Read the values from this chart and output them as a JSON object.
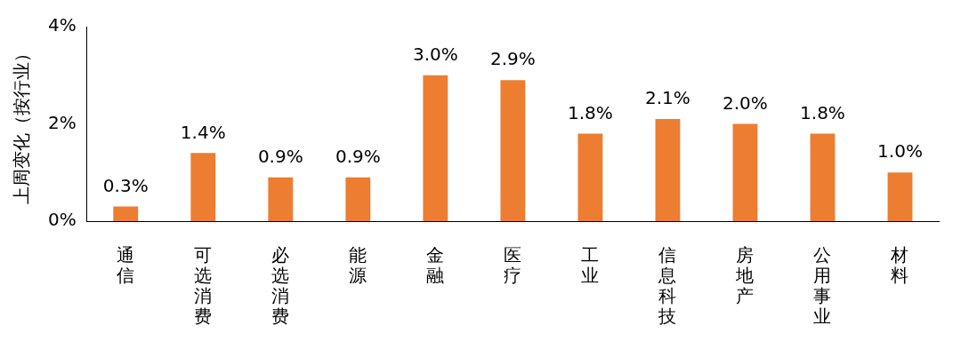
{
  "chart_data": {
    "type": "bar",
    "ylabel": "上周变化（按行业）",
    "categories": [
      "通信",
      "可选消费",
      "必选消费",
      "能源",
      "金融",
      "医疗",
      "工业",
      "信息科技",
      "房地产",
      "公用事业",
      "材料"
    ],
    "values": [
      0.3,
      1.4,
      0.9,
      0.9,
      3.0,
      2.9,
      1.8,
      2.1,
      2.0,
      1.8,
      1.0
    ],
    "value_labels": [
      "0.3%",
      "1.4%",
      "0.9%",
      "0.9%",
      "3.0%",
      "2.9%",
      "1.8%",
      "2.1%",
      "2.0%",
      "1.8%",
      "1.0%"
    ],
    "color": "#ed7d31",
    "ylim": [
      0,
      4
    ],
    "yticks": [
      {
        "value": 0,
        "label": "0%"
      },
      {
        "value": 2,
        "label": "2%"
      },
      {
        "value": 4,
        "label": "4%"
      }
    ],
    "grid": false,
    "legend": false
  }
}
